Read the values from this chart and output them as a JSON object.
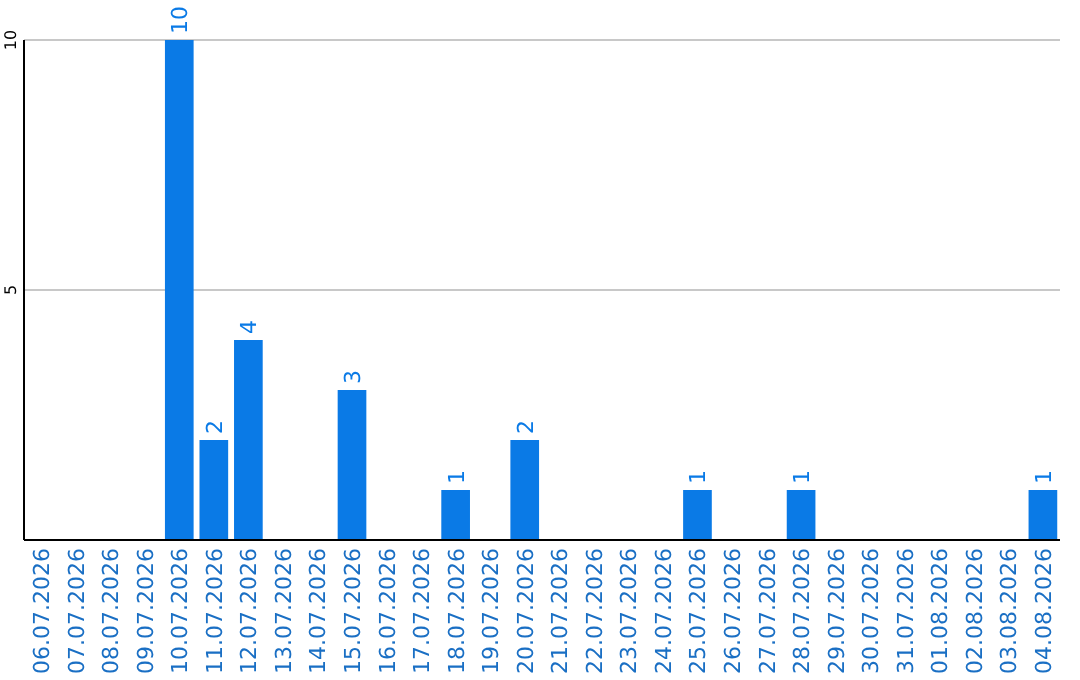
{
  "chart_data": {
    "type": "bar",
    "categories": [
      "06.07.2026",
      "07.07.2026",
      "08.07.2026",
      "09.07.2026",
      "10.07.2026",
      "11.07.2026",
      "12.07.2026",
      "13.07.2026",
      "14.07.2026",
      "15.07.2026",
      "16.07.2026",
      "17.07.2026",
      "18.07.2026",
      "19.07.2026",
      "20.07.2026",
      "21.07.2026",
      "22.07.2026",
      "23.07.2026",
      "24.07.2026",
      "25.07.2026",
      "26.07.2026",
      "27.07.2026",
      "28.07.2026",
      "29.07.2026",
      "30.07.2026",
      "31.07.2026",
      "01.08.2026",
      "02.08.2026",
      "03.08.2026",
      "04.08.2026"
    ],
    "values": [
      0,
      0,
      0,
      0,
      10,
      2,
      4,
      0,
      0,
      3,
      0,
      0,
      1,
      0,
      2,
      0,
      0,
      0,
      0,
      1,
      0,
      0,
      1,
      0,
      0,
      0,
      0,
      0,
      0,
      1
    ],
    "value_labels": [
      null,
      null,
      null,
      null,
      "10",
      "2",
      "4",
      null,
      null,
      "3",
      null,
      null,
      "1",
      null,
      "2",
      null,
      null,
      null,
      null,
      "1",
      null,
      null,
      "1",
      null,
      null,
      null,
      null,
      null,
      null,
      "1"
    ],
    "color": "#0a7ae6",
    "ylim": [
      0,
      10
    ],
    "yticks": [
      5,
      10
    ],
    "grid": "y"
  }
}
